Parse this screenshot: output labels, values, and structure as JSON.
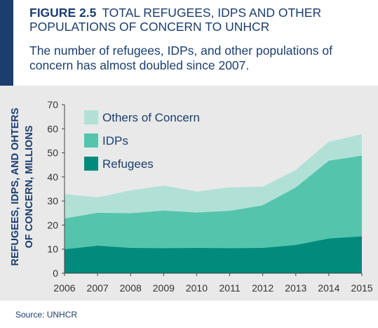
{
  "header": {
    "figure_number": "FIGURE 2.5",
    "figure_title_line1": "TOTAL REFUGEES, IDPS AND OTHER",
    "figure_title_line2": "POPULATIONS OF CONCERN TO UNHCR",
    "subtitle_line1": "The number of refugees, IDPs, and other populations of",
    "subtitle_line2": "concern has almost doubled since 2007."
  },
  "source": "Source: UNHCR",
  "colors": {
    "brand": "#1b3e6e",
    "refugees": "#008b7d",
    "idps": "#55c4ad",
    "others": "#b1e1d6",
    "panel": "#e9e9e9"
  },
  "chart_data": {
    "type": "area",
    "stacked": true,
    "title": "TOTAL REFUGEES, IDPS AND OTHER POPULATIONS OF CONCERN TO UNHCR",
    "xlabel": "",
    "ylabel_line1": "REFUGEES, IDPS, AND OHTERS",
    "ylabel_line2": "OF CONCERN, MILLIONS",
    "ylim": [
      0,
      70
    ],
    "yticks": [
      0,
      10,
      20,
      30,
      40,
      50,
      60,
      70
    ],
    "x": [
      "2006",
      "2007",
      "2008",
      "2009",
      "2010",
      "2011",
      "2012",
      "2013",
      "2014",
      "2015"
    ],
    "series": [
      {
        "name": "Refugees",
        "values": [
          9.9,
          11.4,
          10.5,
          10.4,
          10.5,
          10.4,
          10.5,
          11.7,
          14.4,
          15.3
        ]
      },
      {
        "name": "IDPs",
        "values": [
          12.8,
          13.7,
          14.4,
          15.6,
          14.7,
          15.5,
          17.7,
          23.9,
          32.3,
          33.5
        ]
      },
      {
        "name": "Others of Concern",
        "values": [
          10.2,
          6.4,
          9.5,
          10.4,
          8.7,
          9.8,
          7.7,
          7.3,
          7.9,
          8.9
        ]
      }
    ],
    "legend_order": [
      "Others of Concern",
      "IDPs",
      "Refugees"
    ],
    "legend_position": "top-left",
    "grid": false
  }
}
